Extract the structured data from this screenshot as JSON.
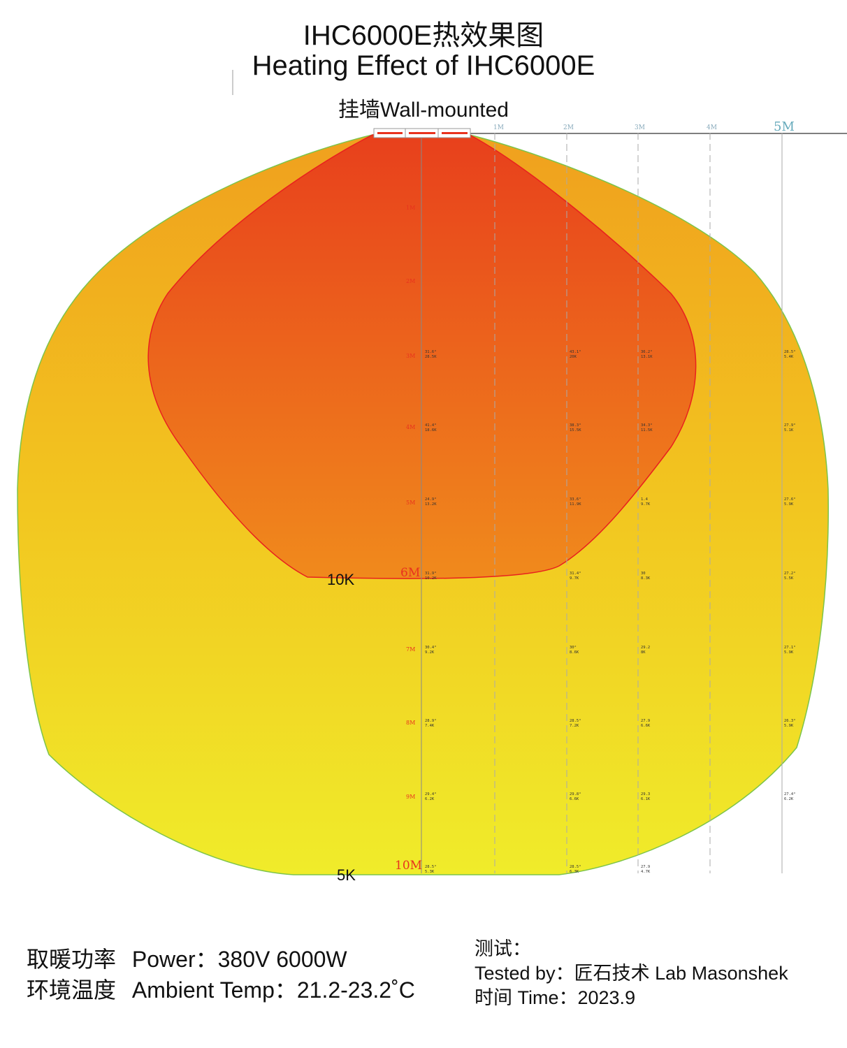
{
  "header": {
    "title_zh": "IHC6000E热效果图",
    "title_en": "Heating Effect of IHC6000E",
    "subtitle": "挂墙Wall-mounted"
  },
  "grid": {
    "column_labels": [
      "1M",
      "2M",
      "3M",
      "4M"
    ],
    "column_label_end": "5M",
    "row_labels": [
      "1M",
      "2M",
      "3M",
      "4M",
      "5M",
      "6M",
      "7M",
      "8M",
      "9M",
      "10M"
    ]
  },
  "zones": {
    "inner_label": "10K",
    "outer_label": "5K"
  },
  "measurements": [
    {
      "row": "3M",
      "c0": [
        "31.6°",
        "28.5K"
      ],
      "c2": [
        "43.1°",
        "20K"
      ],
      "c3": [
        "36.2°",
        "13.1K"
      ],
      "c5": [
        "28.5°",
        "5.4K"
      ]
    },
    {
      "row": "4M",
      "c0": [
        "41.4°",
        "18.6K"
      ],
      "c2": [
        "38.3°",
        "15.5K"
      ],
      "c3": [
        "34.3°",
        "11.5K"
      ],
      "c5": [
        "27.9°",
        "5.1K"
      ]
    },
    {
      "row": "5M",
      "c0": [
        "24.9°",
        "13.2K"
      ],
      "c2": [
        "33.6°",
        "11.9K"
      ],
      "c3": [
        "1.4",
        "9.7K"
      ],
      "c5": [
        "27.6°",
        "5.9K"
      ]
    },
    {
      "row": "6M",
      "c0": [
        "31.9°",
        "10.2K"
      ],
      "c2": [
        "31.4°",
        "9.7K"
      ],
      "c3": [
        "30",
        "8.3K"
      ],
      "c5": [
        "27.2°",
        "5.5K"
      ]
    },
    {
      "row": "7M",
      "c0": [
        "30.4°",
        "9.2K"
      ],
      "c2": [
        "30°",
        "8.6K"
      ],
      "c3": [
        "29.2",
        "8K"
      ],
      "c5": [
        "27.1°",
        "5.9K"
      ]
    },
    {
      "row": "8M",
      "c0": [
        "28.9°",
        "7.4K"
      ],
      "c2": [
        "28.5°",
        "7.2K"
      ],
      "c3": [
        "27.9",
        "6.6K"
      ],
      "c5": [
        "26.3°",
        "5.9K"
      ]
    },
    {
      "row": "9M",
      "c0": [
        "29.4°",
        "6.2K"
      ],
      "c2": [
        "29.8°",
        "6.6K"
      ],
      "c3": [
        "29.3",
        "6.1K"
      ],
      "c5": [
        "27.4°",
        "6.2K"
      ]
    },
    {
      "row": "10M",
      "c0": [
        "28.5°",
        "5.3K"
      ],
      "c2": [
        "28.5°",
        "6.3K"
      ],
      "c3": [
        "27.9",
        "4.7K"
      ],
      "c5": null
    }
  ],
  "footer": {
    "power_zh": "取暖功率",
    "power_en": "Power：380V  6000W",
    "temp_zh": "环境温度",
    "temp_en": "Ambient Temp：21.2-23.2˚C",
    "tested_label": "测试：",
    "tested_by": "Tested by：匠石技术  Lab Masonshek",
    "time": "时间  Time：2023.9"
  },
  "colors": {
    "inner_top": "#e8401c",
    "inner_bottom": "#f08a1c",
    "outer_top": "#f0a01e",
    "outer_bottom": "#f0ec2a",
    "inner_border": "#e8201e",
    "outer_border": "#7cc44a",
    "heater": "#e8321e"
  }
}
